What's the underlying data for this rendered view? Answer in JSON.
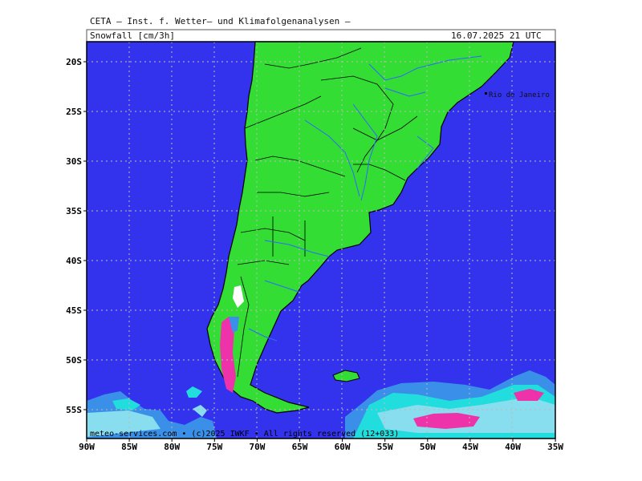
{
  "header": {
    "institute": "CETA — Inst. f. Wetter— und Klimafolgenanalysen —",
    "parameter": "Snowfall [cm/3h]",
    "valid_time": "16.07.2025 21 UTC"
  },
  "map": {
    "region": "Southern South America",
    "lon_range": [
      -90,
      -35
    ],
    "lat_range": [
      -58,
      -18
    ],
    "lat_ticks": [
      "20S",
      "25S",
      "30S",
      "35S",
      "40S",
      "45S",
      "50S",
      "55S"
    ],
    "lon_ticks": [
      "90W",
      "85W",
      "80W",
      "75W",
      "70W",
      "65W",
      "60W",
      "55W",
      "50W",
      "45W",
      "40W",
      "35W"
    ],
    "city_label": "Rio de Janeiro",
    "credit": "meteo-services.com • (c)2025 IWKF • All rights reserved (12+033)",
    "colors": {
      "ocean": "#3333ee",
      "land": "#33dd33",
      "snow_light": "#22dddd",
      "snow_mid": "#88ddee",
      "snow_heavy": "#ee33aa",
      "snow_blue": "#3a8fe8"
    }
  }
}
